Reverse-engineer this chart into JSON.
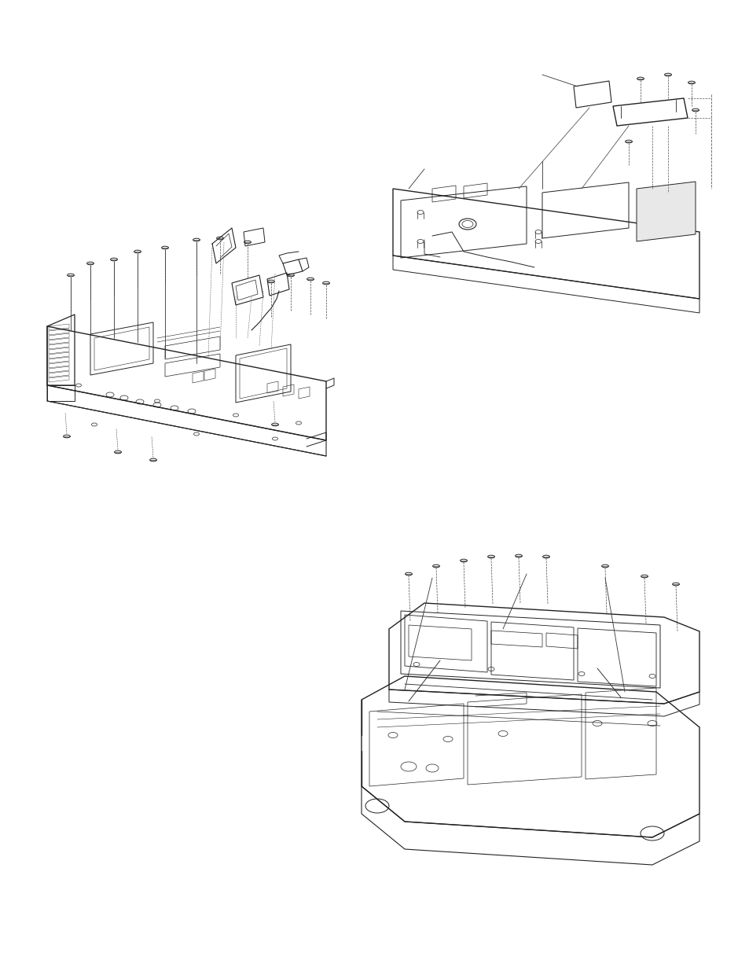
{
  "background_color": "#ffffff",
  "line_color": "#222222",
  "fig_width": 9.54,
  "fig_height": 12.35,
  "dpi": 100
}
